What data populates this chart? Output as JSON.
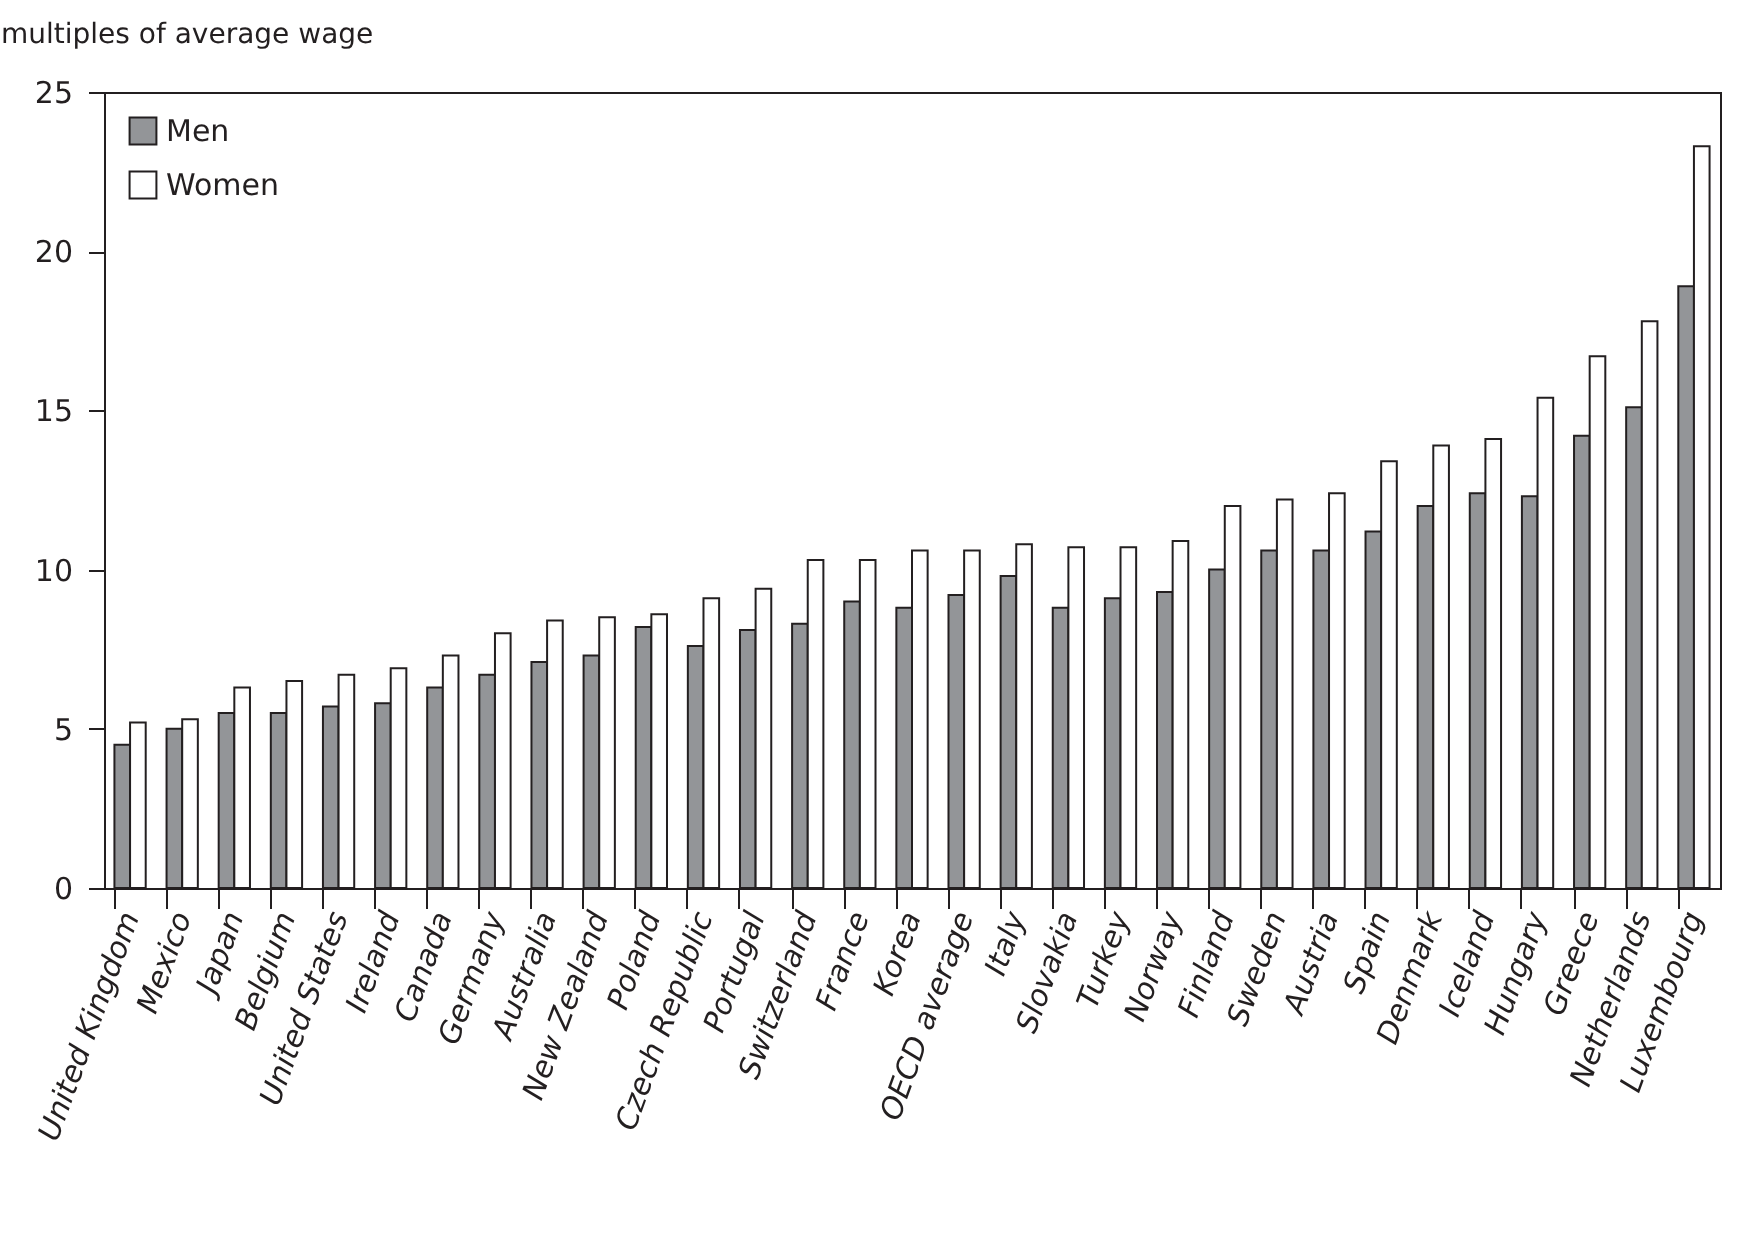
{
  "chart_data": {
    "type": "bar",
    "ylabel": "multiples of average wage",
    "categories": [
      "United Kingdom",
      "Mexico",
      "Japan",
      "Belgium",
      "United States",
      "Ireland",
      "Canada",
      "Germany",
      "Australia",
      "New Zealand",
      "Poland",
      "Czech Republic",
      "Portugal",
      "Switzerland",
      "France",
      "Korea",
      "OECD average",
      "Italy",
      "Slovakia",
      "Turkey",
      "Norway",
      "Finland",
      "Sweden",
      "Austria",
      "Spain",
      "Denmark",
      "Iceland",
      "Hungary",
      "Greece",
      "Netherlands",
      "Luxembourg"
    ],
    "series": [
      {
        "name": "Men",
        "color": "#939598",
        "values": [
          4.5,
          5.0,
          5.5,
          5.5,
          5.7,
          5.8,
          6.3,
          6.7,
          7.1,
          7.3,
          8.2,
          7.6,
          8.1,
          8.3,
          9.0,
          8.8,
          9.2,
          9.8,
          8.8,
          9.1,
          9.3,
          10.0,
          10.6,
          10.6,
          11.2,
          12.0,
          12.4,
          12.3,
          14.2,
          15.1,
          18.9
        ]
      },
      {
        "name": "Women",
        "color": "#ffffff",
        "values": [
          5.2,
          5.3,
          6.3,
          6.5,
          6.7,
          6.9,
          7.3,
          8.0,
          8.4,
          8.5,
          8.6,
          9.1,
          9.4,
          10.3,
          10.3,
          10.6,
          10.6,
          10.8,
          10.7,
          10.7,
          10.9,
          12.0,
          12.2,
          12.4,
          13.4,
          13.9,
          14.1,
          15.4,
          16.7,
          17.8,
          23.3
        ]
      }
    ],
    "ylim": [
      0,
      25
    ],
    "yticks": [
      0,
      5,
      10,
      15,
      20,
      25
    ],
    "grid": false,
    "legend": "top left"
  }
}
